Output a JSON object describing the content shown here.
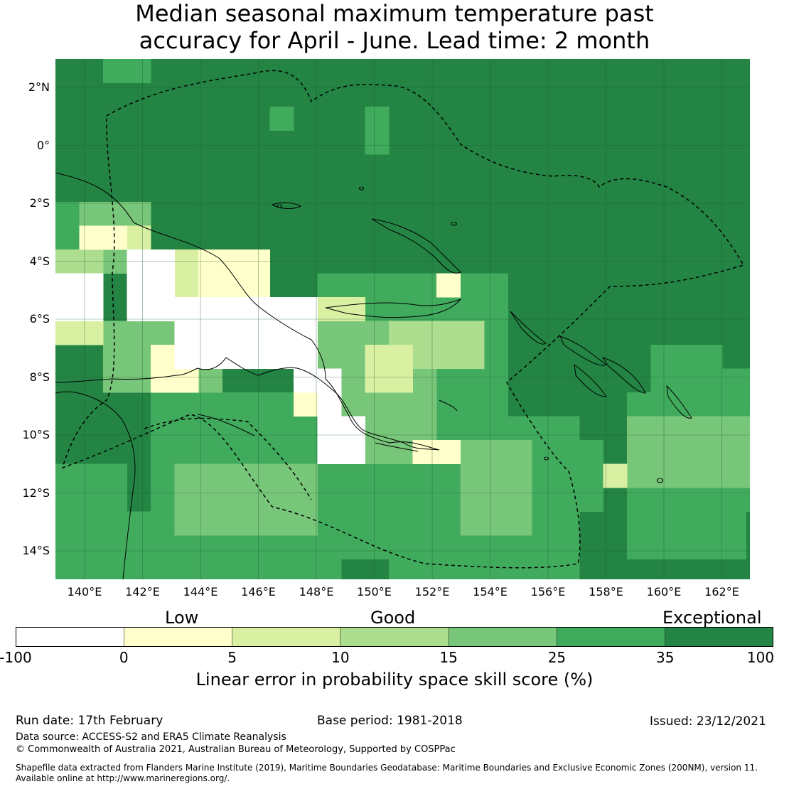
{
  "title": {
    "line1": "Median seasonal maximum temperature past",
    "line2": "accuracy for April - June. Lead time: 2 month"
  },
  "map": {
    "lat_labels": [
      "2°N",
      "0°",
      "2°S",
      "4°S",
      "6°S",
      "8°S",
      "10°S",
      "12°S",
      "14°S"
    ],
    "lon_labels": [
      "140°E",
      "142°E",
      "144°E",
      "146°E",
      "148°E",
      "150°E",
      "152°E",
      "154°E",
      "156°E",
      "158°E",
      "160°E",
      "162°E"
    ],
    "lat_range": [
      -15,
      3
    ],
    "lon_range": [
      139,
      163
    ],
    "grid": "on",
    "boundary_style": "dashed",
    "dominant_class": "Exceptional"
  },
  "legend": {
    "categories": [
      "Low",
      "Good",
      "Exceptional"
    ],
    "ticks": [
      "-100",
      "0",
      "5",
      "10",
      "15",
      "25",
      "35",
      "100"
    ],
    "colors": [
      "#ffffff",
      "#ffffcc",
      "#d9f0a3",
      "#addd8e",
      "#78c679",
      "#41ab5d",
      "#238443"
    ],
    "axis_label": "Linear error in probability space skill score (%)"
  },
  "footer": {
    "run_date": "Run date: 17th February",
    "base_period": "Base period: 1981-2018",
    "issued": "Issued: 23/12/2021",
    "data_source": "Data source: ACCESS-S2 and ERA5 Climate Reanalysis",
    "copyright": "© Commonwealth of Australia 2021, Australian Bureau of Meteorology, Supported by COSPPac",
    "shapefile_line1": "Shapefile data extracted from Flanders Marine Institute (2019), Maritime Boundaries Geodatabase: Maritime Boundaries and Exclusive Economic Zones (200NM), version 11.",
    "shapefile_line2": "Available online at http://www.marineregions.org/."
  }
}
